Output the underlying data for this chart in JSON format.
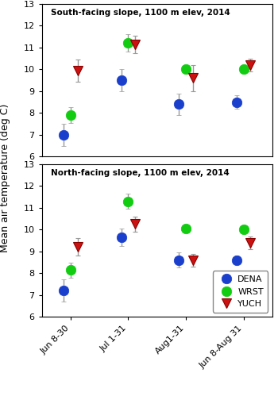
{
  "x_labels": [
    "Jun 8-30",
    "Jul 1-31",
    "Aug1-31",
    "Jun 8-Aug 31"
  ],
  "x_positions": [
    1,
    2,
    3,
    4
  ],
  "offsets": {
    "DENA": -0.12,
    "WRST": 0.0,
    "YUCH": 0.12
  },
  "south": {
    "title": "South-facing slope, 1100 m elev, 2014",
    "DENA": {
      "y": [
        7.0,
        9.5,
        8.4,
        8.5
      ],
      "yerr": [
        0.5,
        0.5,
        0.5,
        0.3
      ]
    },
    "WRST": {
      "y": [
        7.9,
        11.2,
        10.0,
        10.0
      ],
      "yerr": [
        0.35,
        0.4,
        0.15,
        0.15
      ]
    },
    "YUCH": {
      "y": [
        9.95,
        11.15,
        9.6,
        10.2
      ],
      "yerr": [
        0.5,
        0.4,
        0.6,
        0.3
      ]
    }
  },
  "north": {
    "title": "North-facing slope, 1100 m elev, 2014",
    "DENA": {
      "y": [
        7.2,
        9.65,
        8.6,
        8.6
      ],
      "yerr": [
        0.5,
        0.4,
        0.35,
        0.2
      ]
    },
    "WRST": {
      "y": [
        8.15,
        11.3,
        10.05,
        10.0
      ],
      "yerr": [
        0.35,
        0.35,
        0.15,
        0.15
      ]
    },
    "YUCH": {
      "y": [
        9.2,
        10.25,
        8.6,
        9.4
      ],
      "yerr": [
        0.4,
        0.35,
        0.3,
        0.3
      ]
    }
  },
  "colors": {
    "DENA": "#1a3fcc",
    "WRST": "#11cc11",
    "YUCH": "#cc1111"
  },
  "markers": {
    "DENA": "o",
    "WRST": "o",
    "YUCH": "v"
  },
  "marker_size": 9,
  "ylim": [
    6,
    13
  ],
  "yticks": [
    6,
    7,
    8,
    9,
    10,
    11,
    12,
    13
  ],
  "ylabel": "Mean air temperature (deg C)",
  "ecolor": "#999999",
  "elinewidth": 1.0,
  "capsize": 2.5,
  "xlim": [
    0.5,
    4.5
  ]
}
